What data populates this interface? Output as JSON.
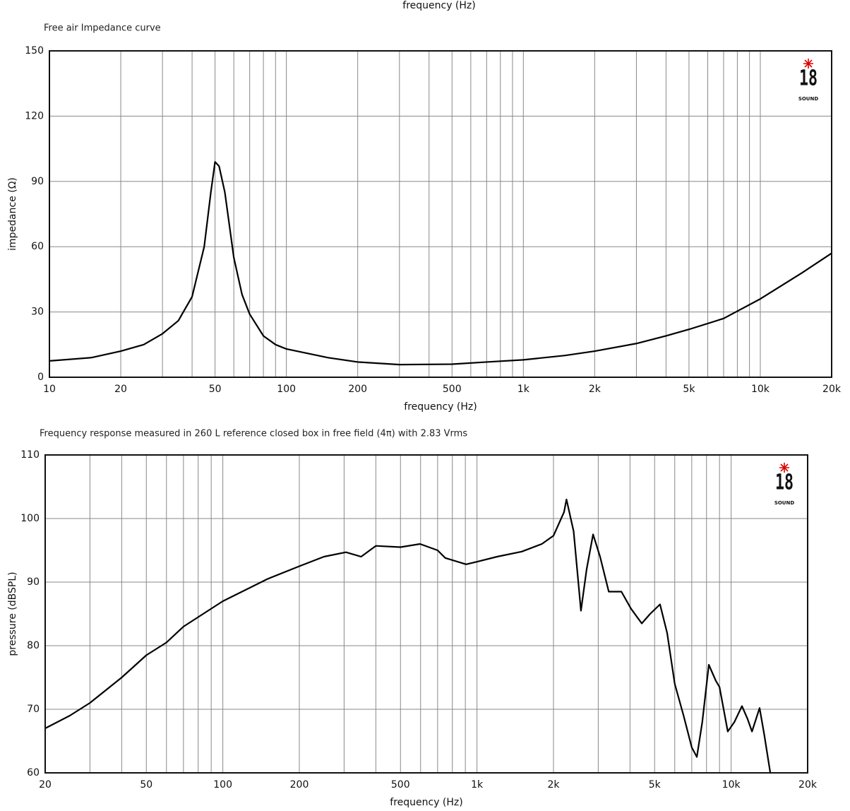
{
  "cropped_label": "frequency (Hz)",
  "chart_data": [
    {
      "type": "line",
      "title": "Free air Impedance curve",
      "xlabel": "frequency (Hz)",
      "ylabel": "impedance (Ω)",
      "logo": "18",
      "logo_sub": "SOUND",
      "xscale": "log",
      "grid": true,
      "xlim": [
        10,
        20000
      ],
      "ylim": [
        0,
        150
      ],
      "xticks": [
        10,
        20,
        50,
        100,
        200,
        500,
        {
          "value": 1000,
          "label": "1k"
        },
        {
          "value": 2000,
          "label": "2k"
        },
        {
          "value": 5000,
          "label": "5k"
        },
        {
          "value": 10000,
          "label": "10k"
        },
        {
          "value": 20000,
          "label": "20k"
        }
      ],
      "xminor": [
        30,
        40,
        60,
        70,
        80,
        90,
        300,
        400,
        600,
        700,
        800,
        900,
        3000,
        4000,
        6000,
        7000,
        8000,
        9000
      ],
      "yticks": [
        0,
        30,
        60,
        90,
        120,
        150
      ],
      "x": [
        10,
        15,
        20,
        25,
        30,
        35,
        40,
        45,
        48,
        50,
        52,
        55,
        60,
        65,
        70,
        80,
        90,
        100,
        150,
        200,
        300,
        500,
        700,
        1000,
        1500,
        2000,
        3000,
        4000,
        5000,
        7000,
        10000,
        15000,
        20000
      ],
      "series": [
        {
          "name": "impedance",
          "color": "#000000",
          "values": [
            7.5,
            9,
            12,
            15,
            20,
            26,
            37,
            60,
            85,
            99,
            97,
            85,
            55,
            38,
            29,
            19,
            15,
            13,
            9,
            7,
            5.8,
            6,
            7,
            8,
            10,
            12,
            15.5,
            19,
            22,
            27,
            36,
            48,
            57
          ]
        }
      ]
    },
    {
      "type": "line",
      "title": "Frequency response measured in 260 L reference closed box in free field (4π) with 2.83 Vrms",
      "xlabel": "frequency (Hz)",
      "ylabel": "pressure (dBSPL)",
      "logo": "18",
      "logo_sub": "SOUND",
      "xscale": "log",
      "grid": true,
      "xlim": [
        20,
        20000
      ],
      "ylim": [
        60,
        110
      ],
      "xticks": [
        20,
        50,
        100,
        200,
        500,
        {
          "value": 1000,
          "label": "1k"
        },
        {
          "value": 2000,
          "label": "2k"
        },
        {
          "value": 5000,
          "label": "5k"
        },
        {
          "value": 10000,
          "label": "10k"
        },
        {
          "value": 20000,
          "label": "20k"
        }
      ],
      "xminor": [
        30,
        40,
        60,
        70,
        80,
        90,
        300,
        400,
        600,
        700,
        800,
        900,
        3000,
        4000,
        6000,
        7000,
        8000,
        9000
      ],
      "yticks": [
        60,
        70,
        80,
        90,
        100,
        110
      ],
      "x": [
        20,
        25,
        30,
        40,
        50,
        60,
        70,
        80,
        100,
        150,
        200,
        250,
        305,
        350,
        400,
        500,
        597,
        700,
        750,
        906,
        1000,
        1200,
        1500,
        1800,
        2000,
        2200,
        2250,
        2400,
        2565,
        2700,
        2863,
        3050,
        3300,
        3700,
        4040,
        4450,
        4800,
        5250,
        5600,
        6000,
        6500,
        7000,
        7330,
        7700,
        8170,
        8700,
        9000,
        9700,
        10300,
        11030,
        11600,
        12080,
        12940,
        13500,
        14260
      ],
      "series": [
        {
          "name": "pressure",
          "color": "#000000",
          "values": [
            67,
            69,
            71,
            75,
            78.5,
            80.5,
            83,
            84.5,
            87,
            90.5,
            92.5,
            94,
            94.7,
            94,
            95.7,
            95.5,
            96,
            95,
            93.8,
            92.8,
            93.2,
            94,
            94.8,
            96,
            97.3,
            101,
            103,
            98,
            85.5,
            92,
            97.5,
            94,
            88.5,
            88.5,
            85.8,
            83.5,
            85,
            86.5,
            82,
            74,
            69,
            64,
            62.5,
            68,
            77,
            74.5,
            73.5,
            66.5,
            68,
            70.5,
            68.5,
            66.5,
            70.2,
            66,
            60
          ]
        }
      ]
    }
  ]
}
